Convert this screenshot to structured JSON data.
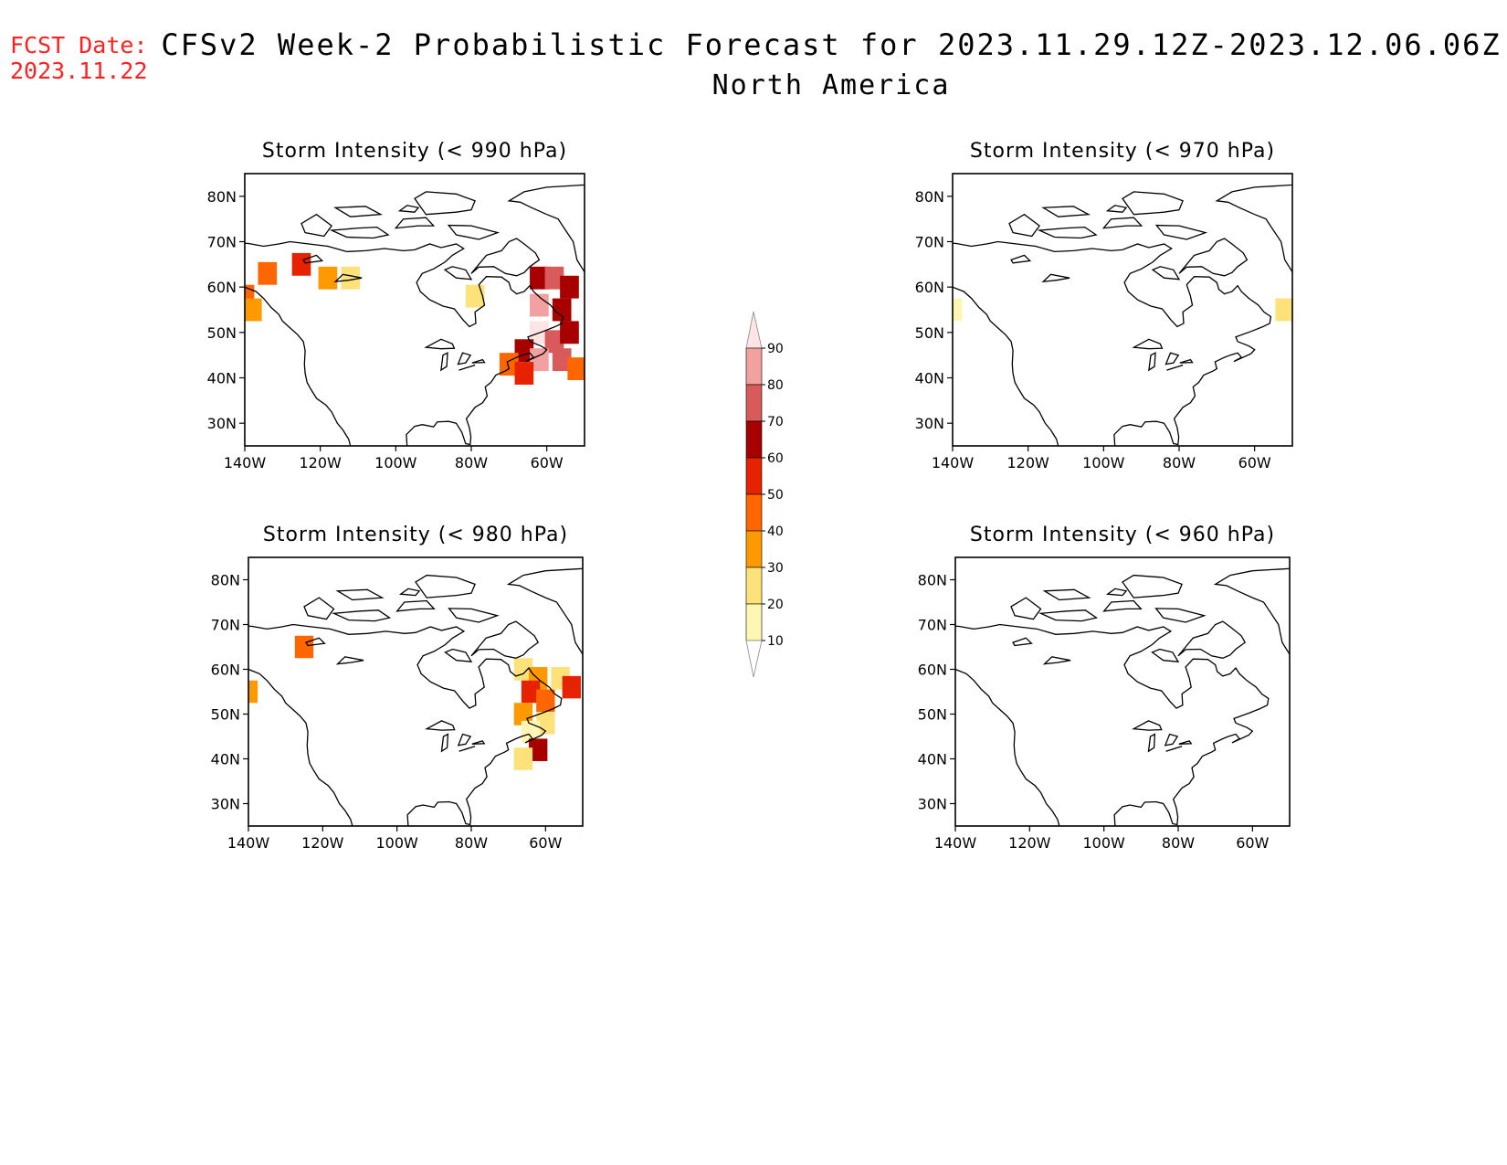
{
  "header": {
    "fcst_label": "FCST Date:",
    "fcst_date": "2023.11.22",
    "title": "CFSv2 Week-2 Probabilistic Forecast for 2023.11.29.12Z-2023.12.06.06Z",
    "subtitle": "North America"
  },
  "axes": {
    "lat_ticks": [
      "80N",
      "70N",
      "60N",
      "50N",
      "40N",
      "30N"
    ],
    "lon_ticks": [
      "140W",
      "120W",
      "100W",
      "80W",
      "60W"
    ],
    "lat_values": [
      80,
      70,
      60,
      50,
      40,
      30
    ],
    "lon_values": [
      -140,
      -120,
      -100,
      -80,
      -60
    ],
    "lon_range": [
      -140,
      -50
    ],
    "lat_range": [
      25,
      85
    ]
  },
  "colorbar": {
    "levels": [
      10,
      20,
      30,
      40,
      50,
      60,
      70,
      80,
      90
    ],
    "labels": [
      "10",
      "20",
      "30",
      "40",
      "50",
      "60",
      "70",
      "80",
      "90"
    ],
    "colors": [
      "#fff6b3",
      "#fde27a",
      "#ff9900",
      "#ff6600",
      "#e62200",
      "#a80000",
      "#d85a5a",
      "#f2a0a0",
      "#fde5e5"
    ]
  },
  "chart_data": [
    {
      "type": "heatmap",
      "title": "Storm Intensity (< 990 hPa)",
      "xlabel": "",
      "ylabel": "",
      "cells": [
        {
          "lon": -140,
          "lat": 58,
          "p": 40
        },
        {
          "lon": -138,
          "lat": 55,
          "p": 30
        },
        {
          "lon": -134,
          "lat": 63,
          "p": 40
        },
        {
          "lon": -125,
          "lat": 65,
          "p": 50
        },
        {
          "lon": -118,
          "lat": 62,
          "p": 30
        },
        {
          "lon": -112,
          "lat": 62,
          "p": 20
        },
        {
          "lon": -79,
          "lat": 58,
          "p": 20
        },
        {
          "lon": -62,
          "lat": 62,
          "p": 60
        },
        {
          "lon": -58,
          "lat": 62,
          "p": 70
        },
        {
          "lon": -54,
          "lat": 60,
          "p": 60
        },
        {
          "lon": -62,
          "lat": 56,
          "p": 80
        },
        {
          "lon": -56,
          "lat": 55,
          "p": 60
        },
        {
          "lon": -62,
          "lat": 50,
          "p": 90
        },
        {
          "lon": -58,
          "lat": 48,
          "p": 70
        },
        {
          "lon": -54,
          "lat": 50,
          "p": 60
        },
        {
          "lon": -66,
          "lat": 46,
          "p": 60
        },
        {
          "lon": -62,
          "lat": 44,
          "p": 80
        },
        {
          "lon": -56,
          "lat": 44,
          "p": 70
        },
        {
          "lon": -70,
          "lat": 43,
          "p": 40
        },
        {
          "lon": -66,
          "lat": 41,
          "p": 50
        },
        {
          "lon": -52,
          "lat": 42,
          "p": 40
        }
      ]
    },
    {
      "type": "heatmap",
      "title": "Storm Intensity (< 970 hPa)",
      "xlabel": "",
      "ylabel": "",
      "cells": [
        {
          "lon": -140,
          "lat": 55,
          "p": 10
        },
        {
          "lon": -52,
          "lat": 55,
          "p": 20
        }
      ]
    },
    {
      "type": "heatmap",
      "title": "Storm Intensity (< 980 hPa)",
      "xlabel": "",
      "ylabel": "",
      "cells": [
        {
          "lon": -140,
          "lat": 55,
          "p": 30
        },
        {
          "lon": -125,
          "lat": 65,
          "p": 40
        },
        {
          "lon": -66,
          "lat": 60,
          "p": 20
        },
        {
          "lon": -62,
          "lat": 58,
          "p": 30
        },
        {
          "lon": -56,
          "lat": 58,
          "p": 20
        },
        {
          "lon": -64,
          "lat": 55,
          "p": 50
        },
        {
          "lon": -60,
          "lat": 53,
          "p": 40
        },
        {
          "lon": -53,
          "lat": 56,
          "p": 50
        },
        {
          "lon": -66,
          "lat": 50,
          "p": 30
        },
        {
          "lon": -60,
          "lat": 48,
          "p": 20
        },
        {
          "lon": -64,
          "lat": 46,
          "p": 10
        },
        {
          "lon": -62,
          "lat": 42,
          "p": 60
        },
        {
          "lon": -66,
          "lat": 40,
          "p": 20
        }
      ]
    },
    {
      "type": "heatmap",
      "title": "Storm Intensity (< 960 hPa)",
      "xlabel": "",
      "ylabel": "",
      "cells": []
    }
  ]
}
